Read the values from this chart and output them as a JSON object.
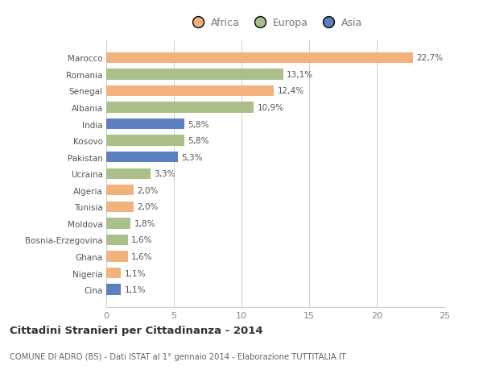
{
  "countries": [
    "Marocco",
    "Romania",
    "Senegal",
    "Albania",
    "India",
    "Kosovo",
    "Pakistan",
    "Ucraina",
    "Algeria",
    "Tunisia",
    "Moldova",
    "Bosnia-Erzegovina",
    "Ghana",
    "Nigeria",
    "Cina"
  ],
  "values": [
    22.7,
    13.1,
    12.4,
    10.9,
    5.8,
    5.8,
    5.3,
    3.3,
    2.0,
    2.0,
    1.8,
    1.6,
    1.6,
    1.1,
    1.1
  ],
  "labels": [
    "22,7%",
    "13,1%",
    "12,4%",
    "10,9%",
    "5,8%",
    "5,8%",
    "5,3%",
    "3,3%",
    "2,0%",
    "2,0%",
    "1,8%",
    "1,6%",
    "1,6%",
    "1,1%",
    "1,1%"
  ],
  "continents": [
    "Africa",
    "Europa",
    "Africa",
    "Europa",
    "Asia",
    "Europa",
    "Asia",
    "Europa",
    "Africa",
    "Africa",
    "Europa",
    "Europa",
    "Africa",
    "Africa",
    "Asia"
  ],
  "colors": {
    "Africa": "#F2B27E",
    "Europa": "#AABF8A",
    "Asia": "#5B7FBF"
  },
  "legend_labels": [
    "Africa",
    "Europa",
    "Asia"
  ],
  "legend_colors": [
    "#F2B27E",
    "#AABF8A",
    "#5B7FBF"
  ],
  "title": "Cittadini Stranieri per Cittadinanza - 2014",
  "subtitle": "COMUNE DI ADRO (BS) - Dati ISTAT al 1° gennaio 2014 - Elaborazione TUTTITALIA.IT",
  "xlim": [
    0,
    25
  ],
  "xticks": [
    0,
    5,
    10,
    15,
    20,
    25
  ],
  "background_color": "#ffffff",
  "bar_height": 0.65
}
